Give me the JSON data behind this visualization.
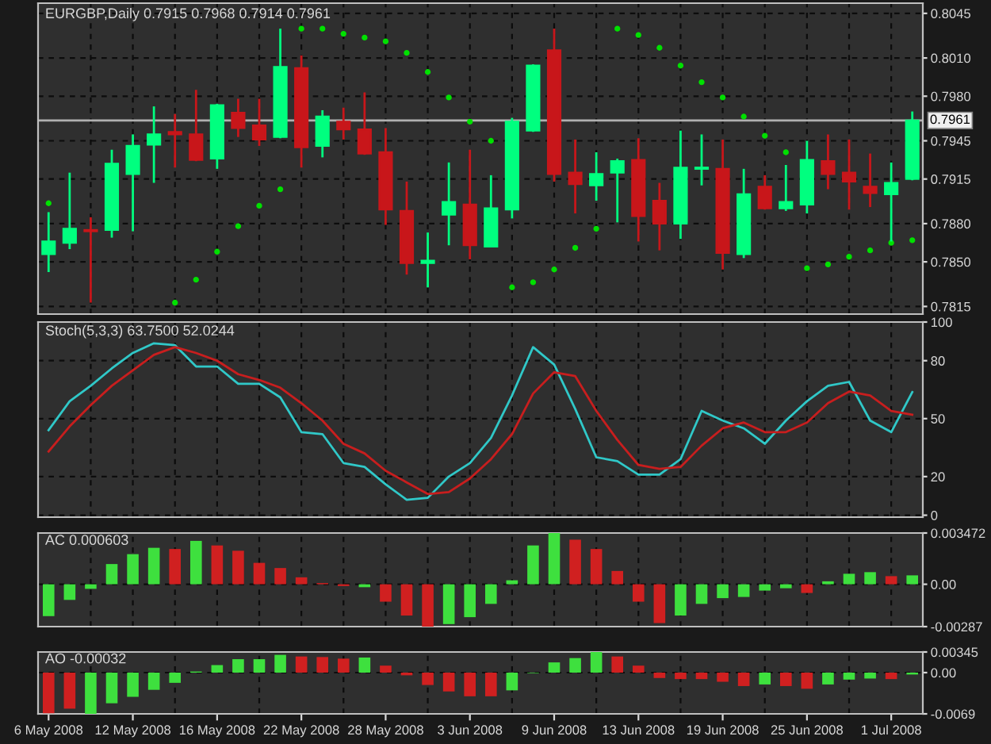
{
  "chart_data": [
    {
      "type": "candlestick",
      "title": "EURGBP,Daily 0.7915 0.7968 0.7914 0.7961",
      "categories": [
        null,
        null,
        null,
        null,
        null,
        null,
        null,
        null,
        null,
        null,
        null,
        null,
        null,
        null,
        null,
        null,
        null,
        null,
        null,
        null,
        null,
        null,
        null,
        null,
        null,
        null,
        null,
        null,
        null,
        null,
        null,
        null,
        null,
        null,
        null,
        null,
        null,
        null,
        null,
        null,
        null,
        null
      ],
      "ohlc": [
        [
          0.7856,
          0.7889,
          0.7842,
          0.7866
        ],
        [
          0.7865,
          0.792,
          0.786,
          0.7876
        ],
        [
          0.7875,
          0.7885,
          0.7818,
          0.7874
        ],
        [
          0.7875,
          0.7938,
          0.7869,
          0.7927
        ],
        [
          0.7919,
          0.795,
          0.7874,
          0.7941
        ],
        [
          0.7942,
          0.7972,
          0.7912,
          0.795
        ],
        [
          0.7952,
          0.7966,
          0.7924,
          0.795
        ],
        [
          0.795,
          0.7985,
          0.7929,
          0.793
        ],
        [
          0.7931,
          0.7974,
          0.7923,
          0.7973
        ],
        [
          0.7967,
          0.7978,
          0.7948,
          0.7955
        ],
        [
          0.7957,
          0.7978,
          0.7941,
          0.7946
        ],
        [
          0.7948,
          0.8033,
          0.7947,
          0.8003
        ],
        [
          0.8002,
          0.8012,
          0.7924,
          0.794
        ],
        [
          0.7941,
          0.7969,
          0.7932,
          0.7964
        ],
        [
          0.796,
          0.7971,
          0.7946,
          0.7954
        ],
        [
          0.7954,
          0.7983,
          0.7934,
          0.7935
        ],
        [
          0.7936,
          0.7955,
          0.7879,
          0.7891
        ],
        [
          0.789,
          0.7913,
          0.784,
          0.7849
        ],
        [
          0.7849,
          0.7873,
          0.783,
          0.7851
        ],
        [
          0.7887,
          0.7928,
          0.7863,
          0.7897
        ],
        [
          0.7895,
          0.7938,
          0.7852,
          0.7863
        ],
        [
          0.7862,
          0.7918,
          0.7862,
          0.7892
        ],
        [
          0.7891,
          0.7963,
          0.7884,
          0.796
        ],
        [
          0.7953,
          0.8005,
          0.7952,
          0.8004
        ],
        [
          0.8016,
          0.8033,
          0.7913,
          0.7919
        ],
        [
          0.792,
          0.7946,
          0.7888,
          0.7911
        ],
        [
          0.791,
          0.7936,
          0.7898,
          0.7919
        ],
        [
          0.792,
          0.7931,
          0.7881,
          0.7929
        ],
        [
          0.793,
          0.7947,
          0.7866,
          0.7886
        ],
        [
          0.7898,
          0.7912,
          0.7859,
          0.788
        ],
        [
          0.788,
          0.7953,
          0.7868,
          0.7924
        ],
        [
          0.7923,
          0.795,
          0.791,
          0.7924
        ],
        [
          0.7923,
          0.7946,
          0.7844,
          0.7857
        ],
        [
          0.7856,
          0.7923,
          0.7853,
          0.7903
        ],
        [
          0.7909,
          0.7918,
          0.7891,
          0.7892
        ],
        [
          0.7892,
          0.7926,
          0.789,
          0.7897
        ],
        [
          0.7895,
          0.7945,
          0.7888,
          0.793
        ],
        [
          0.7929,
          0.795,
          0.7907,
          0.7919
        ],
        [
          0.792,
          0.7946,
          0.7891,
          0.7913
        ],
        [
          0.7909,
          0.7935,
          0.7893,
          0.7904
        ],
        [
          0.7903,
          0.7928,
          0.7866,
          0.7912
        ],
        [
          0.7915,
          0.7968,
          0.7914,
          0.7961
        ]
      ],
      "colors": [
        "#00ff7f",
        "#00ff7f",
        "#c8161a",
        "#00ff7f",
        "#00ff7f",
        "#00ff7f",
        "#c8161a",
        "#c8161a",
        "#00ff7f",
        "#c8161a",
        "#c8161a",
        "#00ff7f",
        "#c8161a",
        "#00ff7f",
        "#c8161a",
        "#c8161a",
        "#c8161a",
        "#c8161a",
        "#00ff7f",
        "#00ff7f",
        "#c8161a",
        "#00ff7f",
        "#00ff7f",
        "#00ff7f",
        "#c8161a",
        "#c8161a",
        "#00ff7f",
        "#00ff7f",
        "#c8161a",
        "#c8161a",
        "#00ff7f",
        "#00ff7f",
        "#c8161a",
        "#00ff7f",
        "#c8161a",
        "#00ff7f",
        "#00ff7f",
        "#c8161a",
        "#c8161a",
        "#c8161a",
        "#00ff7f",
        "#00ff7f"
      ],
      "series": [
        {
          "type": "scatter",
          "color": "#00e000",
          "values": [
            0.7896,
            null,
            null,
            null,
            null,
            null,
            0.7818,
            0.7836,
            0.7858,
            0.7878,
            0.7894,
            0.7907,
            0.8033,
            0.8033,
            0.8029,
            0.8026,
            0.8023,
            0.8014,
            0.7999,
            0.7979,
            0.796,
            0.7945,
            0.783,
            0.7834,
            0.7844,
            0.7861,
            0.7876,
            0.8033,
            0.8028,
            0.8018,
            0.8004,
            0.7991,
            0.7979,
            0.7964,
            0.7949,
            0.7936,
            0.7845,
            0.7848,
            0.7854,
            0.7859,
            0.7865,
            0.7867
          ]
        }
      ],
      "ylim": [
        0.7809,
        0.8053
      ],
      "yticks": [
        0.8045,
        {
          "value": 0.801,
          "label": "0.8010"
        },
        {
          "value": 0.798,
          "label": "0.7980"
        },
        0.7945,
        0.7915,
        {
          "value": 0.788,
          "label": "0.7880"
        },
        {
          "value": 0.785,
          "label": "0.7850"
        },
        0.7815
      ],
      "ref_lines": [
        {
          "axis": "y",
          "value": 0.7961,
          "label": "0.7961",
          "color": "#b0b0b0"
        }
      ],
      "grid": true,
      "tick_labels": "y"
    },
    {
      "type": "line",
      "title": "Stoch(5,3,3) 63.7500 52.0244",
      "categories": [
        null,
        null,
        null,
        null,
        null,
        null,
        null,
        null,
        null,
        null,
        null,
        null,
        null,
        null,
        null,
        null,
        null,
        null,
        null,
        null,
        null,
        null,
        null,
        null,
        null,
        null,
        null,
        null,
        null,
        null,
        null,
        null,
        null,
        null,
        null,
        null,
        null,
        null,
        null,
        null,
        null,
        null
      ],
      "series": [
        {
          "color": "#30c8c8",
          "values": [
            44,
            59,
            67,
            76,
            84,
            89,
            88,
            77,
            77,
            68,
            68,
            61,
            43,
            42,
            27,
            25,
            16,
            8,
            9,
            20,
            27,
            40,
            62,
            87,
            78,
            55,
            30,
            28,
            21,
            21,
            29,
            54,
            49,
            45,
            37,
            49,
            59,
            67,
            69,
            49,
            43,
            63.75
          ]
        },
        {
          "color": "#c81e1e",
          "values": [
            33,
            46,
            57,
            67,
            75,
            83,
            87,
            84,
            80,
            73,
            70,
            66,
            58,
            49,
            37,
            32,
            23,
            17,
            11,
            12,
            19,
            29,
            42,
            63,
            74,
            72,
            54,
            39,
            26,
            24,
            25,
            36,
            45,
            48,
            43,
            43,
            48,
            58,
            64,
            62,
            54,
            52.02
          ]
        }
      ],
      "ylim": [
        -1,
        100
      ],
      "yticks": [
        0,
        20,
        50,
        80,
        100
      ],
      "grid": true,
      "tick_labels": "y"
    },
    {
      "type": "bar",
      "title": "AC 0.000603",
      "categories": [
        null,
        null,
        null,
        null,
        null,
        null,
        null,
        null,
        null,
        null,
        null,
        null,
        null,
        null,
        null,
        null,
        null,
        null,
        null,
        null,
        null,
        null,
        null,
        null,
        null,
        null,
        null,
        null,
        null,
        null,
        null,
        null,
        null,
        null,
        null,
        null,
        null,
        null,
        null,
        null,
        null,
        null
      ],
      "values": [
        -0.00216,
        -0.00106,
        -0.00031,
        0.00137,
        0.00204,
        0.00247,
        0.00239,
        0.00294,
        0.00263,
        0.00227,
        0.00145,
        0.0011,
        0.00047,
        8e-05,
        -0.00012,
        -0.0002,
        -0.00118,
        -0.00212,
        -0.00287,
        -0.0027,
        -0.00223,
        -0.00133,
        0.00027,
        0.00263,
        0.003472,
        0.00302,
        0.00239,
        0.0009,
        -0.00118,
        -0.00263,
        -0.00212,
        -0.00133,
        -0.00094,
        -0.00086,
        -0.00043,
        -0.00027,
        -0.00059,
        0.0002,
        0.00071,
        0.00082,
        0.00055,
        0.000603
      ],
      "colors": [
        "#3ee03e",
        "#3ee03e",
        "#3ee03e",
        "#3ee03e",
        "#3ee03e",
        "#3ee03e",
        "#d02020",
        "#3ee03e",
        "#d02020",
        "#d02020",
        "#d02020",
        "#d02020",
        "#d02020",
        "#d02020",
        "#d02020",
        "#3ee03e",
        "#d02020",
        "#d02020",
        "#d02020",
        "#3ee03e",
        "#3ee03e",
        "#3ee03e",
        "#3ee03e",
        "#3ee03e",
        "#3ee03e",
        "#d02020",
        "#d02020",
        "#d02020",
        "#d02020",
        "#d02020",
        "#3ee03e",
        "#3ee03e",
        "#3ee03e",
        "#3ee03e",
        "#3ee03e",
        "#3ee03e",
        "#d02020",
        "#3ee03e",
        "#3ee03e",
        "#3ee03e",
        "#d02020",
        "#3ee03e"
      ],
      "ylim": [
        -0.00287,
        0.003472
      ],
      "yticks": [
        0.003472,
        {
          "value": 0,
          "label": "0.00"
        },
        -0.00287
      ],
      "grid": true,
      "tick_labels": "y"
    },
    {
      "type": "bar",
      "title": "AO -0.00032",
      "categories": [
        "6 May 2008",
        null,
        null,
        null,
        "12 May 2008",
        null,
        null,
        null,
        "16 May 2008",
        null,
        null,
        null,
        "22 May 2008",
        null,
        null,
        null,
        "28 May 2008",
        null,
        null,
        null,
        "3 Jun 2008",
        null,
        null,
        null,
        "9 Jun 2008",
        null,
        null,
        null,
        "13 Jun 2008",
        null,
        null,
        null,
        "19 Jun 2008",
        null,
        null,
        null,
        "25 Jun 2008",
        null,
        null,
        null,
        "1 Jul 2008",
        null
      ],
      "values": [
        -0.0068,
        -0.00603,
        -0.0069,
        -0.00513,
        -0.00405,
        -0.00288,
        -0.00171,
        0.00018,
        0.00126,
        0.00225,
        0.00225,
        0.00297,
        0.0027,
        0.00261,
        0.00234,
        0.00252,
        0.00117,
        -0.00045,
        -0.00207,
        -0.00315,
        -0.00396,
        -0.00396,
        -0.00297,
        -9e-05,
        0.00171,
        0.00243,
        0.00345,
        0.0027,
        0.00117,
        -0.0009,
        -0.00108,
        -0.00108,
        -0.00153,
        -0.00225,
        -0.00198,
        -0.00225,
        -0.0027,
        -0.00198,
        -0.00117,
        -0.00099,
        -0.00108,
        -0.00032
      ],
      "colors": [
        "#d02020",
        "#d02020",
        "#3ee03e",
        "#3ee03e",
        "#3ee03e",
        "#3ee03e",
        "#3ee03e",
        "#3ee03e",
        "#3ee03e",
        "#3ee03e",
        "#3ee03e",
        "#3ee03e",
        "#d02020",
        "#d02020",
        "#d02020",
        "#3ee03e",
        "#d02020",
        "#d02020",
        "#d02020",
        "#d02020",
        "#d02020",
        "#d02020",
        "#3ee03e",
        "#3ee03e",
        "#3ee03e",
        "#3ee03e",
        "#3ee03e",
        "#d02020",
        "#d02020",
        "#d02020",
        "#d02020",
        "#d02020",
        "#d02020",
        "#d02020",
        "#3ee03e",
        "#d02020",
        "#d02020",
        "#3ee03e",
        "#3ee03e",
        "#3ee03e",
        "#d02020",
        "#3ee03e"
      ],
      "ylim": [
        -0.0069,
        0.00345
      ],
      "yticks": [
        0.00345,
        {
          "value": 0,
          "label": "0.00"
        },
        -0.0069
      ],
      "grid": true
    }
  ]
}
